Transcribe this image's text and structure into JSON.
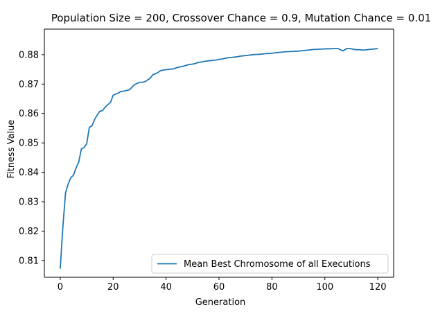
{
  "chart_data": {
    "type": "line",
    "title": "Population Size = 200, Crossover Chance = 0.9, Mutation Chance = 0.01",
    "xlabel": "Generation",
    "ylabel": "Fitness Value",
    "xlim": [
      -6,
      126
    ],
    "ylim": [
      0.8043,
      0.8887
    ],
    "xticks": [
      0,
      20,
      40,
      60,
      80,
      100,
      120
    ],
    "xtick_labels": [
      "0",
      "20",
      "40",
      "60",
      "80",
      "100",
      "120"
    ],
    "yticks": [
      0.81,
      0.82,
      0.83,
      0.84,
      0.85,
      0.86,
      0.87,
      0.88
    ],
    "ytick_labels": [
      "0.81",
      "0.82",
      "0.83",
      "0.84",
      "0.85",
      "0.86",
      "0.87",
      "0.88"
    ],
    "grid": false,
    "legend_position": "lower-right",
    "series": [
      {
        "name": "Mean Best Chromosome of all Executions",
        "color": "#1f77b4",
        "x": [
          0,
          1,
          2,
          3,
          4,
          5,
          6,
          7,
          8,
          9,
          10,
          11,
          12,
          13,
          14,
          15,
          16,
          17,
          18,
          19,
          20,
          21,
          22,
          23,
          24,
          25,
          26,
          27,
          28,
          29,
          30,
          31,
          32,
          33,
          34,
          35,
          36,
          37,
          38,
          39,
          40,
          41,
          42,
          43,
          44,
          45,
          46,
          47,
          48,
          49,
          50,
          51,
          52,
          53,
          54,
          55,
          56,
          57,
          58,
          59,
          60,
          61,
          62,
          63,
          64,
          65,
          66,
          67,
          68,
          69,
          70,
          71,
          72,
          73,
          74,
          75,
          76,
          77,
          78,
          79,
          80,
          81,
          82,
          83,
          84,
          85,
          86,
          87,
          88,
          89,
          90,
          91,
          92,
          93,
          94,
          95,
          96,
          97,
          98,
          99,
          100,
          101,
          102,
          103,
          104,
          105,
          106,
          107,
          108,
          109,
          110,
          111,
          112,
          113,
          114,
          115,
          116,
          117,
          118,
          119,
          120
        ],
        "y": [
          0.8072,
          0.8215,
          0.833,
          0.836,
          0.8382,
          0.839,
          0.8415,
          0.8435,
          0.848,
          0.8484,
          0.8497,
          0.8553,
          0.8558,
          0.858,
          0.8595,
          0.8608,
          0.861,
          0.8622,
          0.863,
          0.8638,
          0.8662,
          0.8666,
          0.867,
          0.8675,
          0.8676,
          0.8678,
          0.868,
          0.8688,
          0.8698,
          0.8702,
          0.8706,
          0.8706,
          0.8708,
          0.8714,
          0.872,
          0.8732,
          0.8735,
          0.874,
          0.8746,
          0.8748,
          0.8749,
          0.875,
          0.8751,
          0.8752,
          0.8756,
          0.8758,
          0.876,
          0.8762,
          0.8765,
          0.8767,
          0.8768,
          0.877,
          0.8773,
          0.8775,
          0.8776,
          0.8778,
          0.8779,
          0.878,
          0.8781,
          0.8782,
          0.8784,
          0.8785,
          0.8787,
          0.8789,
          0.879,
          0.8791,
          0.8792,
          0.8793,
          0.8795,
          0.8796,
          0.8797,
          0.8798,
          0.8799,
          0.88,
          0.8801,
          0.8801,
          0.8802,
          0.8803,
          0.8804,
          0.8804,
          0.8805,
          0.8806,
          0.8807,
          0.8808,
          0.8809,
          0.881,
          0.881,
          0.8811,
          0.8811,
          0.8812,
          0.8812,
          0.8813,
          0.8814,
          0.8815,
          0.8816,
          0.8817,
          0.8818,
          0.8818,
          0.8819,
          0.8819,
          0.882,
          0.882,
          0.882,
          0.8821,
          0.8821,
          0.8821,
          0.8816,
          0.8813,
          0.882,
          0.8821,
          0.882,
          0.8818,
          0.8817,
          0.8817,
          0.8816,
          0.8816,
          0.8817,
          0.8818,
          0.8819,
          0.882,
          0.8821
        ]
      }
    ]
  }
}
